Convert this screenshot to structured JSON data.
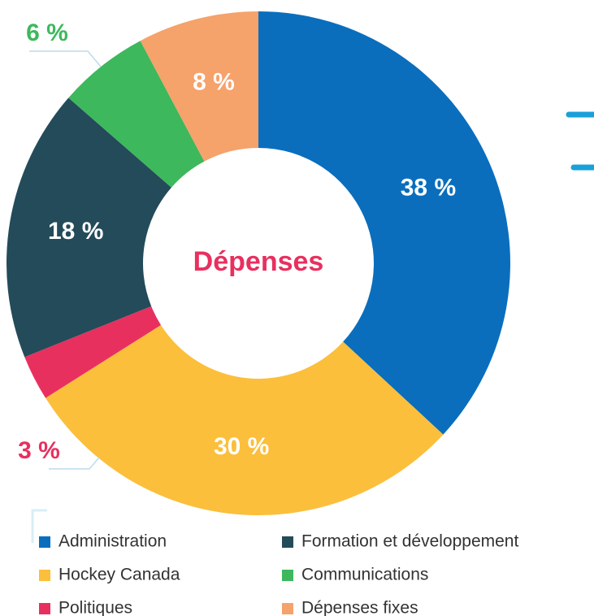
{
  "chart_data": {
    "type": "donut",
    "title": "Dépenses",
    "title_color": "#e8305f",
    "categories": [
      "Administration",
      "Hockey Canada",
      "Politiques",
      "Formation et développement",
      "Communications",
      "Dépenses fixes"
    ],
    "values": [
      38,
      30,
      3,
      18,
      6,
      8
    ],
    "value_labels": [
      "38 %",
      "30 %",
      "3 %",
      "18 %",
      "6 %",
      "8 %"
    ],
    "colors": [
      "#0a6ebd",
      "#fbbf3c",
      "#e8305f",
      "#234b5a",
      "#3db85c",
      "#f5a26b"
    ]
  }
}
